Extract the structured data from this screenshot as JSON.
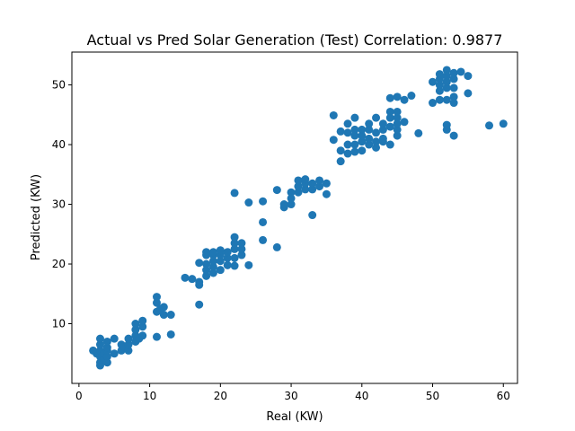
{
  "chart_data": {
    "type": "scatter",
    "title": "Actual vs Pred Solar Generation (Test) Correlation: 0.9877",
    "xlabel": "Real (KW)",
    "ylabel": "Predicted (KW)",
    "xlim": [
      -1,
      62
    ],
    "ylim": [
      0,
      55.5
    ],
    "xticks": [
      0,
      10,
      20,
      30,
      40,
      50,
      60
    ],
    "yticks": [
      10,
      20,
      30,
      40,
      50
    ],
    "grid": false,
    "marker_color": "#1f77b4",
    "series": [
      {
        "points": [
          [
            2,
            5.5
          ],
          [
            2.5,
            5.0
          ],
          [
            3,
            3.0
          ],
          [
            3,
            3.5
          ],
          [
            3,
            4.5
          ],
          [
            3,
            5.5
          ],
          [
            3,
            6.5
          ],
          [
            3,
            7.5
          ],
          [
            3.5,
            4.0
          ],
          [
            3.5,
            5.0
          ],
          [
            4,
            3.5
          ],
          [
            4,
            4.5
          ],
          [
            4,
            5.5
          ],
          [
            4,
            6.0
          ],
          [
            4,
            7.0
          ],
          [
            5,
            5.0
          ],
          [
            5,
            7.5
          ],
          [
            6,
            5.5
          ],
          [
            6,
            6.5
          ],
          [
            6.5,
            6.0
          ],
          [
            7,
            5.5
          ],
          [
            7,
            6.5
          ],
          [
            7,
            7.5
          ],
          [
            8,
            7.0
          ],
          [
            8,
            8.0
          ],
          [
            8,
            9.0
          ],
          [
            8,
            10.0
          ],
          [
            8.5,
            7.5
          ],
          [
            9,
            8.0
          ],
          [
            9,
            9.5
          ],
          [
            9,
            10.5
          ],
          [
            11,
            7.8
          ],
          [
            11,
            12.0
          ],
          [
            11,
            13.5
          ],
          [
            11,
            14.5
          ],
          [
            11.5,
            12.5
          ],
          [
            12,
            11.5
          ],
          [
            12,
            12.8
          ],
          [
            13,
            8.2
          ],
          [
            13,
            11.5
          ],
          [
            15,
            17.7
          ],
          [
            16,
            17.5
          ],
          [
            17,
            13.2
          ],
          [
            17,
            16.5
          ],
          [
            17,
            17.0
          ],
          [
            17,
            20.2
          ],
          [
            18,
            18.0
          ],
          [
            18,
            19.0
          ],
          [
            18,
            20.0
          ],
          [
            18,
            21.5
          ],
          [
            18,
            22.0
          ],
          [
            19,
            18.5
          ],
          [
            19,
            19.5
          ],
          [
            19,
            20.5
          ],
          [
            19,
            21.5
          ],
          [
            19,
            22.0
          ],
          [
            20,
            19.0
          ],
          [
            20,
            20.5
          ],
          [
            20,
            21.5
          ],
          [
            20,
            22.3
          ],
          [
            21,
            19.8
          ],
          [
            21,
            21.0
          ],
          [
            21,
            22.0
          ],
          [
            22,
            19.7
          ],
          [
            22,
            21.0
          ],
          [
            22,
            22.5
          ],
          [
            22,
            23.5
          ],
          [
            22,
            24.5
          ],
          [
            22,
            31.9
          ],
          [
            23,
            21.5
          ],
          [
            23,
            22.5
          ],
          [
            23,
            23.5
          ],
          [
            24,
            19.8
          ],
          [
            24,
            30.3
          ],
          [
            26,
            24.0
          ],
          [
            26,
            27.0
          ],
          [
            26,
            30.5
          ],
          [
            28,
            22.8
          ],
          [
            28,
            32.4
          ],
          [
            29,
            29.5
          ],
          [
            29,
            30.0
          ],
          [
            30,
            30.0
          ],
          [
            30,
            31.0
          ],
          [
            30,
            32.0
          ],
          [
            31,
            32.0
          ],
          [
            31,
            33.0
          ],
          [
            31,
            34.0
          ],
          [
            32,
            32.5
          ],
          [
            32,
            33.5
          ],
          [
            32,
            34.2
          ],
          [
            33,
            28.2
          ],
          [
            33,
            32.5
          ],
          [
            33,
            33.5
          ],
          [
            34,
            33.0
          ],
          [
            34,
            34.0
          ],
          [
            35,
            31.7
          ],
          [
            35,
            33.5
          ],
          [
            36,
            40.8
          ],
          [
            36,
            44.9
          ],
          [
            37,
            37.2
          ],
          [
            37,
            39.0
          ],
          [
            37,
            42.2
          ],
          [
            38,
            38.5
          ],
          [
            38,
            40.0
          ],
          [
            38,
            42.0
          ],
          [
            38,
            43.5
          ],
          [
            39,
            38.8
          ],
          [
            39,
            40.0
          ],
          [
            39,
            41.5
          ],
          [
            39,
            42.5
          ],
          [
            39,
            44.5
          ],
          [
            40,
            39.0
          ],
          [
            40,
            40.5
          ],
          [
            40,
            41.5
          ],
          [
            40,
            42.5
          ],
          [
            41,
            40.0
          ],
          [
            41,
            41.0
          ],
          [
            41,
            42.5
          ],
          [
            41,
            43.5
          ],
          [
            42,
            39.5
          ],
          [
            42,
            40.5
          ],
          [
            42,
            42.0
          ],
          [
            42,
            44.5
          ],
          [
            43,
            40.5
          ],
          [
            43,
            41.0
          ],
          [
            43,
            42.5
          ],
          [
            43,
            43.5
          ],
          [
            44,
            40.0
          ],
          [
            44,
            43.0
          ],
          [
            44,
            44.5
          ],
          [
            44,
            45.5
          ],
          [
            44,
            47.8
          ],
          [
            45,
            41.5
          ],
          [
            45,
            42.5
          ],
          [
            45,
            43.5
          ],
          [
            45,
            44.5
          ],
          [
            45,
            45.5
          ],
          [
            45,
            48.0
          ],
          [
            46,
            43.8
          ],
          [
            46,
            47.5
          ],
          [
            47,
            48.2
          ],
          [
            48,
            41.9
          ],
          [
            50,
            47.0
          ],
          [
            50,
            50.5
          ],
          [
            51,
            47.5
          ],
          [
            51,
            49.0
          ],
          [
            51,
            50.0
          ],
          [
            51,
            51.0
          ],
          [
            51,
            51.8
          ],
          [
            52,
            42.5
          ],
          [
            52,
            43.3
          ],
          [
            52,
            47.5
          ],
          [
            52,
            49.5
          ],
          [
            52,
            50.5
          ],
          [
            52,
            51.5
          ],
          [
            52,
            52.5
          ],
          [
            53,
            41.5
          ],
          [
            53,
            47.0
          ],
          [
            53,
            48.0
          ],
          [
            53,
            49.5
          ],
          [
            53,
            51.0
          ],
          [
            53,
            52.0
          ],
          [
            54,
            52.2
          ],
          [
            55,
            48.6
          ],
          [
            55,
            51.5
          ],
          [
            58,
            43.2
          ],
          [
            60,
            43.5
          ]
        ]
      }
    ]
  }
}
